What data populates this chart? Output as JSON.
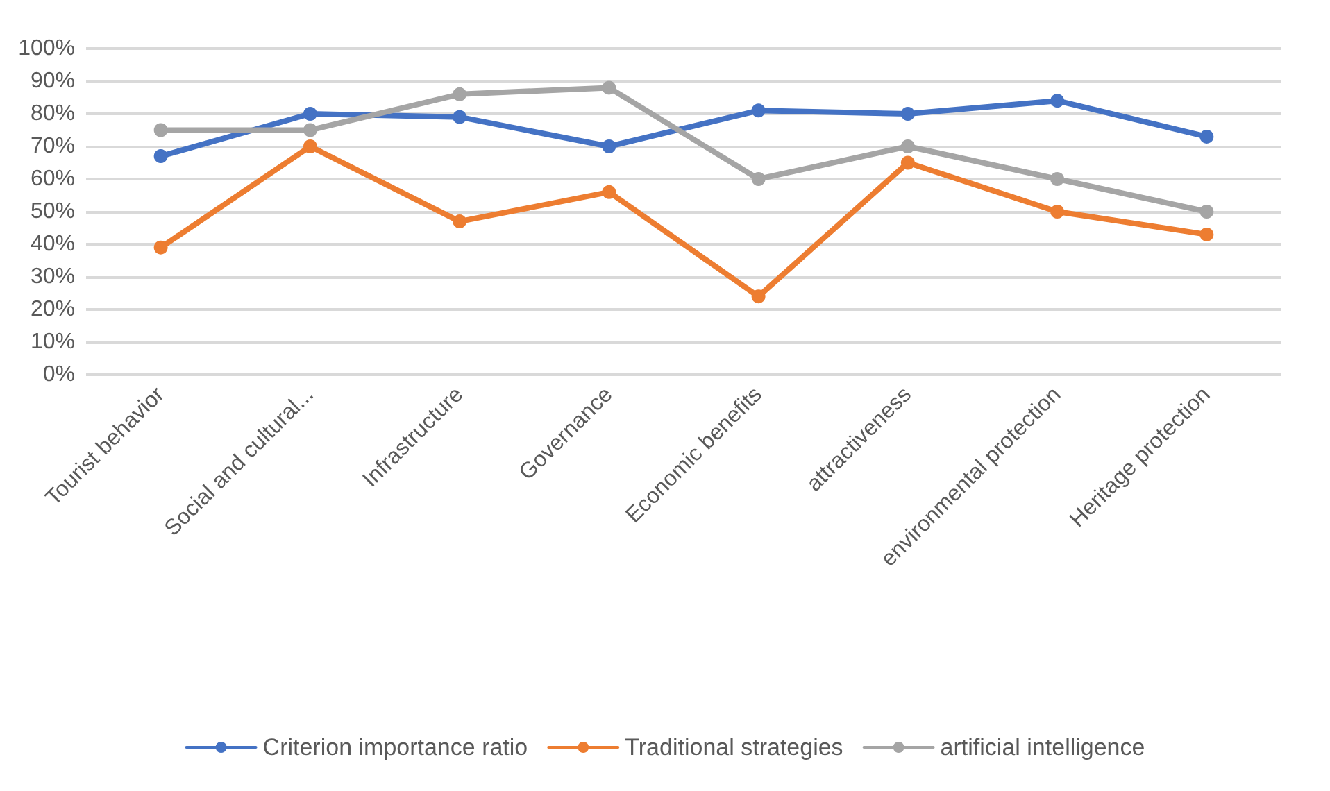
{
  "chart_data": {
    "type": "line",
    "categories": [
      "Tourist behavior",
      "Social and cultural...",
      "Infrastructure",
      "Governance",
      "Economic benefits",
      "attractiveness",
      "environmental protection",
      "Heritage protection"
    ],
    "series": [
      {
        "name": "Criterion importance ratio",
        "color": "#4472c4",
        "values": [
          67,
          80,
          79,
          70,
          81,
          80,
          84,
          73
        ]
      },
      {
        "name": "Traditional strategies",
        "color": "#ed7d31",
        "values": [
          39,
          70,
          47,
          56,
          24,
          65,
          50,
          43
        ]
      },
      {
        "name": "artificial intelligence",
        "color": "#a5a5a5",
        "values": [
          75,
          75,
          86,
          88,
          60,
          70,
          60,
          50
        ]
      }
    ],
    "ylim": [
      0,
      100
    ],
    "yticks": [
      {
        "value": 0,
        "label": "0%"
      },
      {
        "value": 10,
        "label": "10%"
      },
      {
        "value": 20,
        "label": "20%"
      },
      {
        "value": 30,
        "label": "30%"
      },
      {
        "value": 40,
        "label": "40%"
      },
      {
        "value": 50,
        "label": "50%"
      },
      {
        "value": 60,
        "label": "60%"
      },
      {
        "value": 70,
        "label": "70%"
      },
      {
        "value": 80,
        "label": "80%"
      },
      {
        "value": 90,
        "label": "90%"
      },
      {
        "value": 100,
        "label": "100%"
      }
    ],
    "grid": "y",
    "legend": "bottom",
    "marker": "circle",
    "line_style": "solid"
  }
}
